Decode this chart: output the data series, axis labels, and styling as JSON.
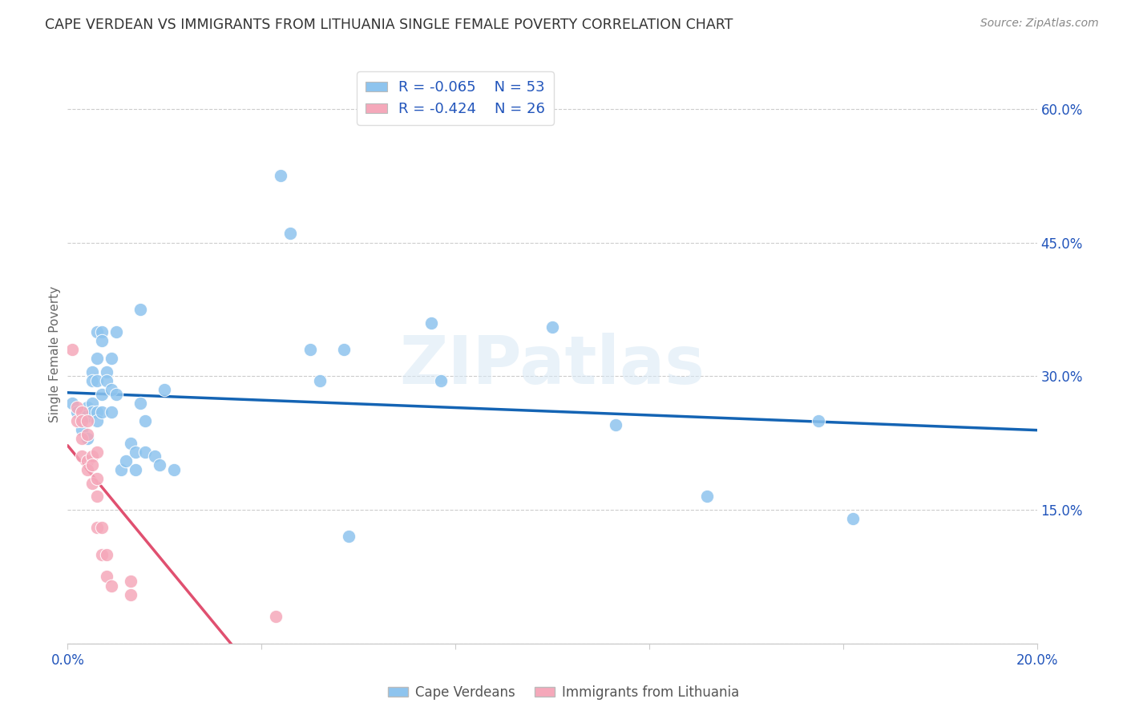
{
  "title": "CAPE VERDEAN VS IMMIGRANTS FROM LITHUANIA SINGLE FEMALE POVERTY CORRELATION CHART",
  "source": "Source: ZipAtlas.com",
  "ylabel_label": "Single Female Poverty",
  "x_min": 0.0,
  "x_max": 0.2,
  "y_min": 0.0,
  "y_max": 0.65,
  "x_ticks": [
    0.0,
    0.04,
    0.08,
    0.12,
    0.16,
    0.2
  ],
  "x_tick_labels": [
    "0.0%",
    "",
    "",
    "",
    "",
    "20.0%"
  ],
  "y_ticks": [
    0.0,
    0.15,
    0.3,
    0.45,
    0.6
  ],
  "y_tick_labels": [
    "",
    "15.0%",
    "30.0%",
    "45.0%",
    "60.0%"
  ],
  "r_cape_verdean": -0.065,
  "n_cape_verdean": 53,
  "r_lithuania": -0.424,
  "n_lithuania": 26,
  "color_blue": "#8EC4EE",
  "color_pink": "#F5A8BA",
  "color_blue_line": "#1464B4",
  "color_pink_line": "#E05070",
  "color_blue_text": "#2255BB",
  "color_title": "#333333",
  "watermark": "ZIPatlas",
  "legend_label_blue": "Cape Verdeans",
  "legend_label_pink": "Immigrants from Lithuania",
  "blue_points": [
    [
      0.001,
      0.27
    ],
    [
      0.002,
      0.26
    ],
    [
      0.003,
      0.255
    ],
    [
      0.003,
      0.24
    ],
    [
      0.004,
      0.265
    ],
    [
      0.004,
      0.255
    ],
    [
      0.004,
      0.23
    ],
    [
      0.005,
      0.305
    ],
    [
      0.005,
      0.295
    ],
    [
      0.005,
      0.27
    ],
    [
      0.005,
      0.26
    ],
    [
      0.006,
      0.35
    ],
    [
      0.006,
      0.32
    ],
    [
      0.006,
      0.295
    ],
    [
      0.006,
      0.26
    ],
    [
      0.006,
      0.25
    ],
    [
      0.007,
      0.35
    ],
    [
      0.007,
      0.34
    ],
    [
      0.007,
      0.28
    ],
    [
      0.007,
      0.26
    ],
    [
      0.008,
      0.305
    ],
    [
      0.008,
      0.295
    ],
    [
      0.009,
      0.32
    ],
    [
      0.009,
      0.285
    ],
    [
      0.009,
      0.26
    ],
    [
      0.01,
      0.35
    ],
    [
      0.01,
      0.28
    ],
    [
      0.011,
      0.195
    ],
    [
      0.012,
      0.205
    ],
    [
      0.013,
      0.225
    ],
    [
      0.014,
      0.215
    ],
    [
      0.014,
      0.195
    ],
    [
      0.015,
      0.375
    ],
    [
      0.015,
      0.27
    ],
    [
      0.016,
      0.25
    ],
    [
      0.016,
      0.215
    ],
    [
      0.018,
      0.21
    ],
    [
      0.019,
      0.2
    ],
    [
      0.02,
      0.285
    ],
    [
      0.022,
      0.195
    ],
    [
      0.044,
      0.525
    ],
    [
      0.046,
      0.46
    ],
    [
      0.05,
      0.33
    ],
    [
      0.052,
      0.295
    ],
    [
      0.057,
      0.33
    ],
    [
      0.058,
      0.12
    ],
    [
      0.075,
      0.36
    ],
    [
      0.077,
      0.295
    ],
    [
      0.1,
      0.355
    ],
    [
      0.113,
      0.245
    ],
    [
      0.132,
      0.165
    ],
    [
      0.155,
      0.25
    ],
    [
      0.162,
      0.14
    ]
  ],
  "pink_points": [
    [
      0.001,
      0.33
    ],
    [
      0.002,
      0.265
    ],
    [
      0.002,
      0.25
    ],
    [
      0.003,
      0.26
    ],
    [
      0.003,
      0.25
    ],
    [
      0.003,
      0.23
    ],
    [
      0.003,
      0.21
    ],
    [
      0.004,
      0.25
    ],
    [
      0.004,
      0.235
    ],
    [
      0.004,
      0.205
    ],
    [
      0.004,
      0.195
    ],
    [
      0.005,
      0.21
    ],
    [
      0.005,
      0.2
    ],
    [
      0.005,
      0.18
    ],
    [
      0.006,
      0.215
    ],
    [
      0.006,
      0.185
    ],
    [
      0.006,
      0.165
    ],
    [
      0.006,
      0.13
    ],
    [
      0.007,
      0.13
    ],
    [
      0.007,
      0.1
    ],
    [
      0.008,
      0.1
    ],
    [
      0.008,
      0.075
    ],
    [
      0.009,
      0.065
    ],
    [
      0.013,
      0.07
    ],
    [
      0.013,
      0.055
    ],
    [
      0.043,
      0.03
    ]
  ]
}
